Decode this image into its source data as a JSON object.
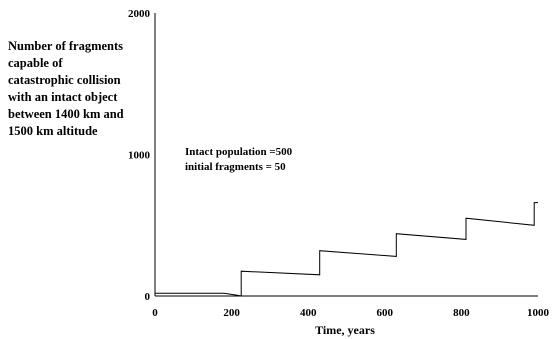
{
  "chart_data": {
    "type": "line",
    "ylabel": "Number of fragments capable of catastrophic collision with an intact object between 1400 km and 1500 km altitude",
    "xlabel": "Time, years",
    "xlim": [
      0,
      1000
    ],
    "ylim": [
      0,
      2000
    ],
    "x_ticks": [
      "0",
      "200",
      "400",
      "600",
      "800",
      "1000"
    ],
    "y_ticks": [
      "0",
      "1000",
      "2000"
    ],
    "annotations": [
      "Intact population =500",
      "initial fragments = 50"
    ],
    "grid": false,
    "series": [
      {
        "x": [
          0,
          180,
          215,
          225,
          225,
          430,
          430,
          630,
          630,
          812,
          812,
          990,
          990,
          1000
        ],
        "y": [
          20,
          20,
          5,
          0,
          175,
          150,
          320,
          280,
          440,
          400,
          550,
          500,
          660,
          660
        ]
      }
    ]
  }
}
